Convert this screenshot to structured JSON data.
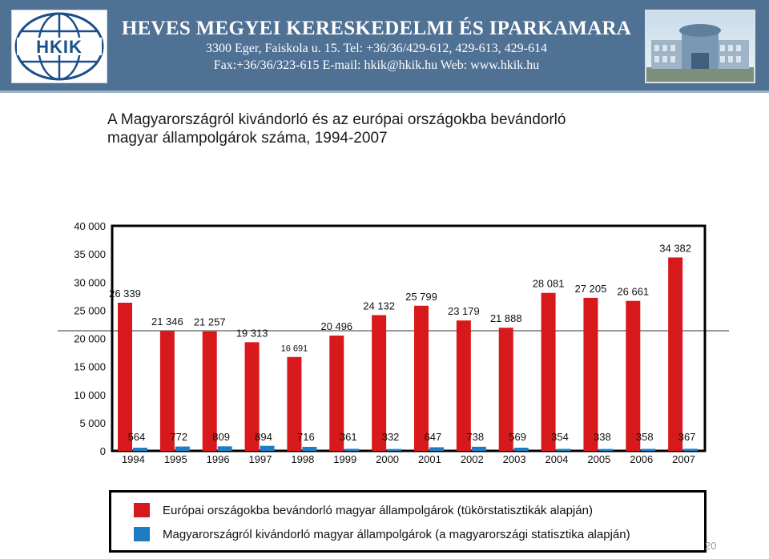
{
  "header": {
    "logo_text": "HKIK",
    "org_name": "HEVES MEGYEI KERESKEDELMI ÉS IPARKAMARA",
    "contact_line1": "3300 Eger, Faiskola u. 15.   Tel: +36/36/429-612, 429-613, 429-614",
    "contact_line2": "Fax:+36/36/323-615   E-mail: hkik@hkik.hu   Web: www.hkik.hu"
  },
  "slide": {
    "title_line1": "A Magyarországról kivándorló és az európai országokba bevándorló",
    "title_line2": "magyar állampolgárok száma, 1994-2007",
    "page_number": "20"
  },
  "colors": {
    "red": "#d7191c",
    "blue": "#1f7cc1",
    "header": "#4f7194"
  },
  "chart_data": {
    "type": "bar",
    "title": "A Magyarországról kivándorló és az európai országokba bevándorló magyar állampolgárok száma, 1994-2007",
    "categories": [
      "1994",
      "1995",
      "1996",
      "1997",
      "1998",
      "1999",
      "2000",
      "2001",
      "2002",
      "2003",
      "2004",
      "2005",
      "2006",
      "2007"
    ],
    "y_ticks": [
      "0",
      "5 000",
      "10 000",
      "15 000",
      "20 000",
      "25 000",
      "30 000",
      "35 000",
      "40 000"
    ],
    "ylim": [
      0,
      40000
    ],
    "grid": false,
    "legend_position": "bottom",
    "series": [
      {
        "name": "Európai országokba bevándorló magyar állampolgárok (tükörstatisztikák alapján)",
        "color": "#d7191c",
        "values": [
          26339,
          21346,
          21257,
          19313,
          16691,
          20496,
          24132,
          25799,
          23179,
          21888,
          28081,
          27205,
          26661,
          34382
        ],
        "labels": [
          "26 339",
          "21 346",
          "21 257",
          "19 313",
          "16 691",
          "20 496",
          "24 132",
          "25 799",
          "23 179",
          "21 888",
          "28 081",
          "27 205",
          "26 661",
          "34 382"
        ]
      },
      {
        "name": "Magyarországról kivándorló magyar állampolgárok (a magyarországi statisztika alapján)",
        "color": "#1f7cc1",
        "values": [
          564,
          772,
          809,
          894,
          716,
          361,
          332,
          647,
          738,
          569,
          354,
          338,
          358,
          367
        ],
        "labels": [
          "564",
          "772",
          "809",
          "894",
          "716",
          "361",
          "332",
          "647",
          "738",
          "569",
          "354",
          "338",
          "358",
          "367"
        ]
      }
    ]
  }
}
